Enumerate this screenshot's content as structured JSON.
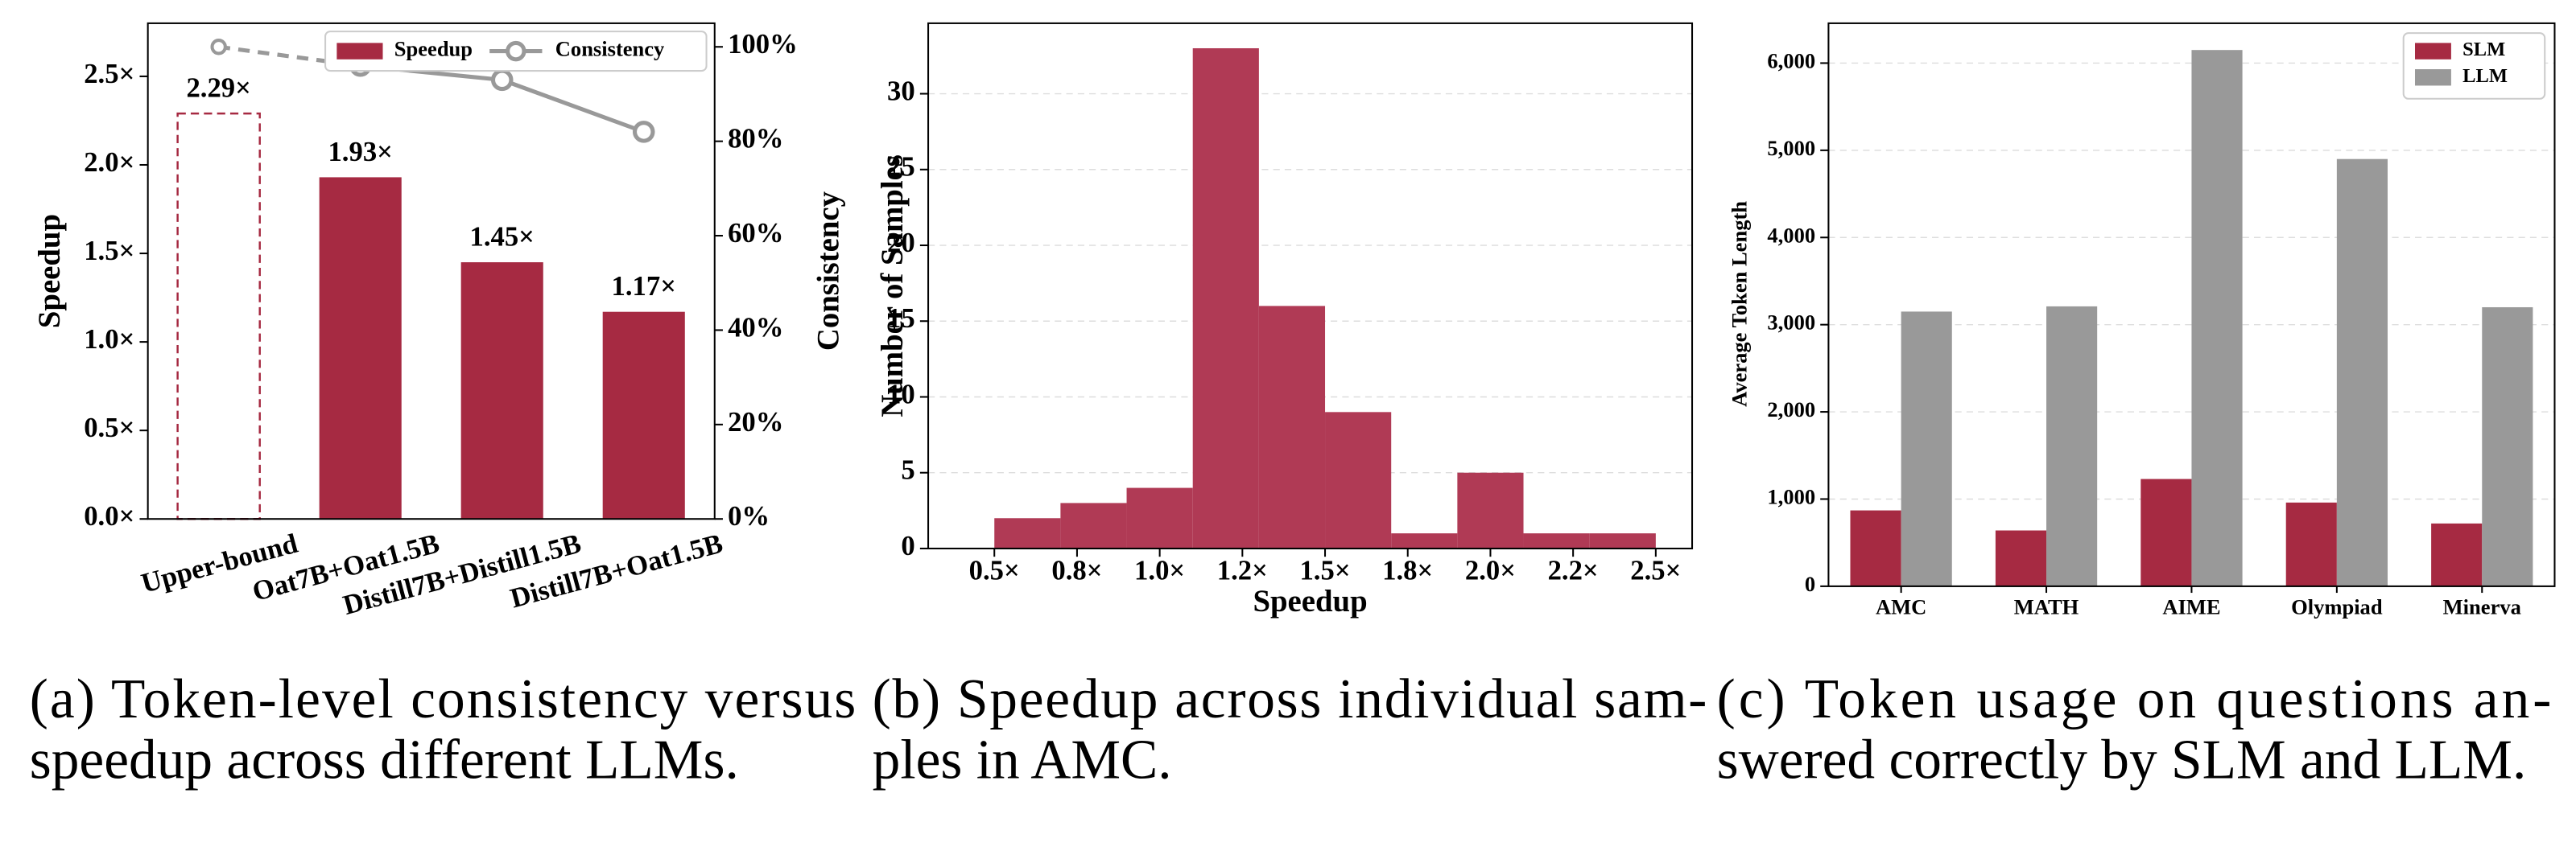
{
  "chart_data": [
    {
      "type": "bar_line",
      "categories": [
        "Upper-bound",
        "Oat7B+Oat1.5B",
        "Distill7B+Distill1.5B",
        "Distill7B+Oat1.5B"
      ],
      "series": [
        {
          "name": "Speedup",
          "color": "#a62a42",
          "values": [
            2.29,
            1.93,
            1.45,
            1.17
          ],
          "value_labels": [
            "2.29×",
            "1.93×",
            "1.45×",
            "1.17×"
          ]
        },
        {
          "name": "Consistency",
          "color": "#999999",
          "values": [
            100,
            96,
            93,
            82
          ],
          "axis": "y2"
        }
      ],
      "ylabel": "Speedup",
      "y2label": "Consistency",
      "ylim": [
        0,
        2.8
      ],
      "yticks": [
        {
          "value": 0,
          "label": "0.0×"
        },
        {
          "value": 0.5,
          "label": "0.5×"
        },
        {
          "value": 1,
          "label": "1.0×"
        },
        {
          "value": 1.5,
          "label": "1.5×"
        },
        {
          "value": 2,
          "label": "2.0×"
        },
        {
          "value": 2.5,
          "label": "2.5×"
        }
      ],
      "y2lim": [
        0,
        105
      ],
      "y2ticks": [
        {
          "value": 0,
          "label": "0%"
        },
        {
          "value": 20,
          "label": "20%"
        },
        {
          "value": 40,
          "label": "40%"
        },
        {
          "value": 60,
          "label": "60%"
        },
        {
          "value": 80,
          "label": "80%"
        },
        {
          "value": 100,
          "label": "100%"
        }
      ],
      "caption": [
        "(a) Token-level consistency versus",
        "speedup across different LLMs."
      ]
    },
    {
      "type": "histogram",
      "bins": [
        0.5,
        0.7,
        0.9,
        1.1,
        1.3,
        1.5,
        1.7,
        1.9,
        2.1,
        2.3,
        2.5
      ],
      "values": [
        2,
        3,
        4,
        33,
        16,
        9,
        1,
        5,
        1,
        1
      ],
      "color": "#b03a55",
      "xlabel": "Speedup",
      "ylabel": "Number of Samples",
      "xlim": [
        0.3,
        2.61
      ],
      "xticks": [
        {
          "value": 0.5,
          "label": "0.5×"
        },
        {
          "value": 0.75,
          "label": "0.8×"
        },
        {
          "value": 1,
          "label": "1.0×"
        },
        {
          "value": 1.25,
          "label": "1.2×"
        },
        {
          "value": 1.5,
          "label": "1.5×"
        },
        {
          "value": 1.75,
          "label": "1.8×"
        },
        {
          "value": 2,
          "label": "2.0×"
        },
        {
          "value": 2.25,
          "label": "2.2×"
        },
        {
          "value": 2.5,
          "label": "2.5×"
        }
      ],
      "ylim": [
        0,
        34.65
      ],
      "yticks": [
        0,
        5,
        10,
        15,
        20,
        25,
        30
      ],
      "grid": true,
      "caption": [
        "(b) Speedup across individual sam-",
        "ples in AMC."
      ]
    },
    {
      "type": "grouped_bar",
      "categories": [
        "AMC",
        "MATH",
        "AIME",
        "Olympiad",
        "Minerva"
      ],
      "series": [
        {
          "name": "SLM",
          "color": "#a62a42",
          "values": [
            870,
            640,
            1230,
            960,
            720
          ]
        },
        {
          "name": "LLM",
          "color": "#999999",
          "values": [
            3150,
            3210,
            6150,
            4900,
            3200
          ]
        }
      ],
      "ylabel": "Average Token Length",
      "ylim": [
        0,
        6457
      ],
      "yticks": [
        0,
        {
          "value": 1000,
          "label": "1,000"
        },
        {
          "value": 2000,
          "label": "2,000"
        },
        {
          "value": 3000,
          "label": "3,000"
        },
        {
          "value": 4000,
          "label": "4,000"
        },
        {
          "value": 5000,
          "label": "5,000"
        },
        {
          "value": 6000,
          "label": "6,000"
        }
      ],
      "grid": true,
      "legend": "upper right",
      "caption": [
        "(c) Token usage on questions an-",
        "swered correctly by SLM and LLM."
      ]
    }
  ]
}
